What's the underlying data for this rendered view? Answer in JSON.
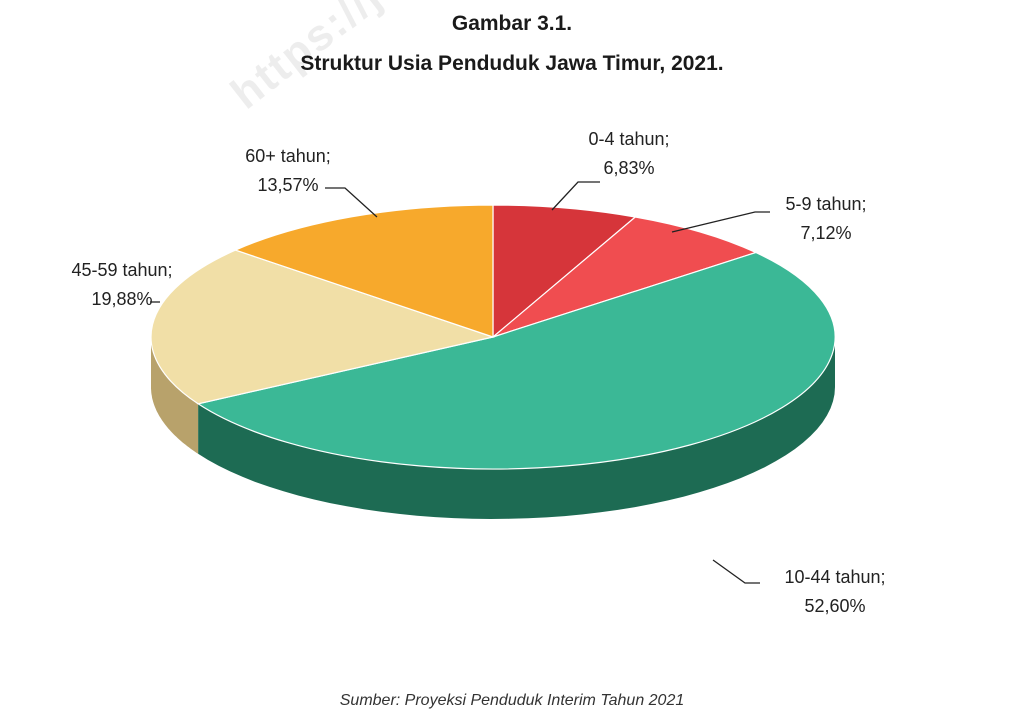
{
  "figure": {
    "caption_number": "Gambar 3.1.",
    "title": "Struktur Usia Penduduk Jawa Timur, 2021.",
    "source": "Sumber: Proyeksi Penduduk Interim Tahun 2021",
    "watermark": "https://ja"
  },
  "chart_data": {
    "type": "pie",
    "style": "3d",
    "title": "Struktur Usia Penduduk Jawa Timur, 2021.",
    "slices": [
      {
        "label": "0-4 tahun;",
        "value_text": "6,83%",
        "value": 6.83,
        "color": "#d6353a",
        "side_color": "#8a1f22"
      },
      {
        "label": "5-9 tahun;",
        "value_text": "7,12%",
        "value": 7.12,
        "color": "#f04d50",
        "side_color": "#9e2b2d"
      },
      {
        "label": "10-44 tahun;",
        "value_text": "52,60%",
        "value": 52.6,
        "color": "#3bb896",
        "side_color": "#1d6b53"
      },
      {
        "label": "45-59 tahun;",
        "value_text": "19,88%",
        "value": 19.88,
        "color": "#f1dfa7",
        "side_color": "#b8a26b"
      },
      {
        "label": "60+ tahun;",
        "value_text": "13,57%",
        "value": 13.57,
        "color": "#f7a92c",
        "side_color": "#b07718"
      }
    ]
  }
}
